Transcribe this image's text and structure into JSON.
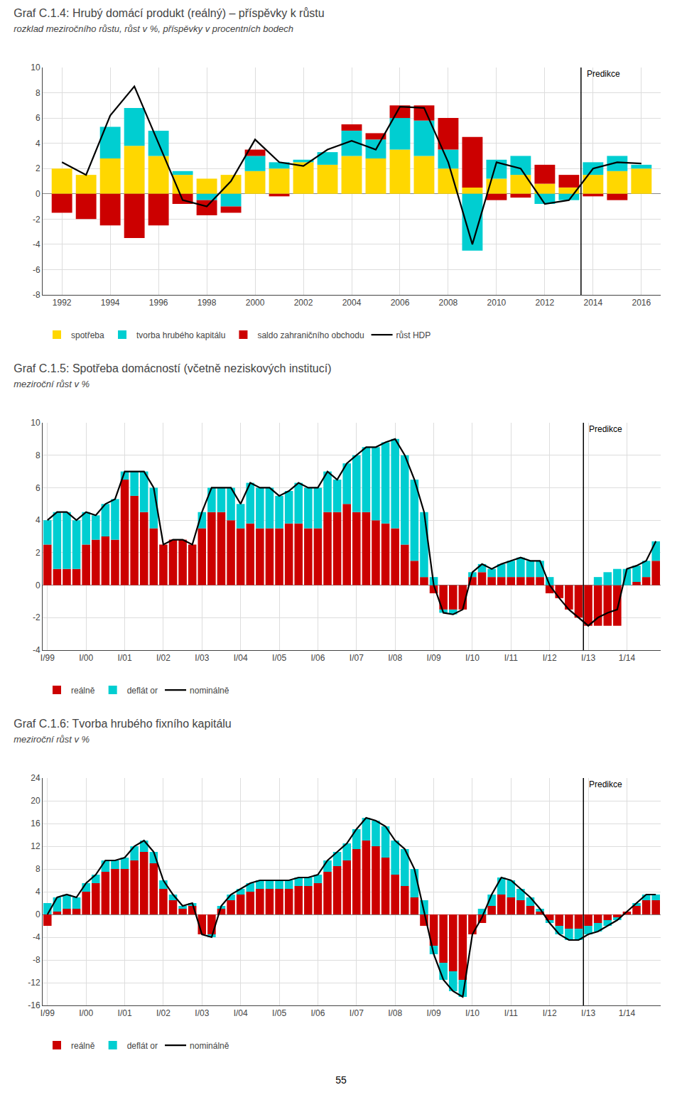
{
  "chart_data": [
    {
      "type": "bar",
      "title": "Graf C.1.4: Hrubý domácí produkt (reálný) – příspěvky k růstu",
      "subtitle": "rozklad meziročního růstu, růst v %, příspěvky v procentních bodech",
      "x": [
        1992,
        1993,
        1994,
        1995,
        1996,
        1997,
        1998,
        1999,
        2000,
        2001,
        2002,
        2003,
        2004,
        2005,
        2006,
        2007,
        2008,
        2009,
        2010,
        2011,
        2012,
        2013,
        2014,
        2015,
        2016
      ],
      "series": [
        {
          "name": "spotřeba",
          "type": "bar",
          "color": "#FFD700",
          "values": [
            2.0,
            1.5,
            2.8,
            3.8,
            3.0,
            1.5,
            1.2,
            1.5,
            1.8,
            2.0,
            2.5,
            2.3,
            3.0,
            2.8,
            3.5,
            3.0,
            2.0,
            0.5,
            1.2,
            1.5,
            0.8,
            0.5,
            1.5,
            1.8,
            2.0
          ]
        },
        {
          "name": "tvorba hrubého kapitálu",
          "type": "bar",
          "color": "#00CED1",
          "values": [
            0.0,
            0.0,
            2.5,
            3.0,
            2.0,
            0.3,
            -0.5,
            -1.0,
            1.2,
            0.5,
            0.2,
            1.0,
            2.0,
            1.5,
            2.5,
            2.8,
            1.5,
            -4.5,
            1.5,
            1.5,
            -0.8,
            -0.5,
            1.0,
            1.2,
            0.3
          ]
        },
        {
          "name": "saldo zahraničního obchodu",
          "type": "bar",
          "color": "#CC0000",
          "values": [
            -1.5,
            -2.0,
            -2.5,
            -3.5,
            -2.5,
            -0.8,
            -1.2,
            -0.5,
            0.5,
            -0.2,
            0.0,
            0.0,
            0.5,
            0.5,
            1.0,
            1.2,
            2.5,
            4.0,
            -0.5,
            -0.3,
            1.5,
            1.0,
            -0.2,
            -0.5,
            0.0
          ]
        },
        {
          "name": "růst HDP",
          "type": "line",
          "color": "#000000",
          "values": [
            2.5,
            1.5,
            6.2,
            8.5,
            4.0,
            -0.5,
            -1.0,
            1.0,
            4.3,
            2.5,
            2.2,
            3.5,
            4.2,
            3.5,
            6.9,
            6.8,
            2.5,
            -4.0,
            2.5,
            2.0,
            -0.8,
            -0.5,
            2.0,
            2.5,
            2.4
          ]
        }
      ],
      "annotations": [
        {
          "text": "Predikce",
          "x": 2013.5
        }
      ],
      "xlim": [
        1991.2,
        2016.8
      ],
      "xticks": [
        1992,
        1994,
        1996,
        1998,
        2000,
        2002,
        2004,
        2006,
        2008,
        2010,
        2012,
        2014,
        2016
      ],
      "ylim": [
        -8,
        10
      ],
      "yticks": [
        -8,
        -6,
        -4,
        -2,
        0,
        2,
        4,
        6,
        8,
        10
      ],
      "stacked": true,
      "grid": true,
      "legend": "bottom"
    },
    {
      "type": "bar",
      "title": "Graf C.1.5: Spotřeba domácností (včetně neziskových institucí)",
      "subtitle": "meziroční růst v %",
      "categories": [
        "I/99",
        null,
        null,
        null,
        "I/00",
        null,
        null,
        null,
        "I/01",
        null,
        null,
        null,
        "I/02",
        null,
        null,
        null,
        "I/03",
        null,
        null,
        null,
        "I/04",
        null,
        null,
        null,
        "I/05",
        null,
        null,
        null,
        "I/06",
        null,
        null,
        null,
        "I/07",
        null,
        null,
        null,
        "I/08",
        null,
        null,
        null,
        "I/09",
        null,
        null,
        null,
        "I/10",
        null,
        null,
        null,
        "I/11",
        null,
        null,
        null,
        "I/12",
        null,
        null,
        null,
        "I/13",
        null,
        null,
        null,
        "1/14",
        null,
        null,
        null
      ],
      "series": [
        {
          "name": "reálně",
          "type": "bar",
          "color": "#CC0000",
          "values": [
            2.5,
            1.0,
            1.0,
            1.0,
            2.5,
            2.8,
            3.0,
            2.8,
            6.5,
            5.5,
            4.5,
            3.5,
            2.5,
            2.8,
            2.8,
            2.5,
            3.5,
            4.5,
            4.5,
            4.0,
            3.5,
            3.8,
            3.5,
            3.5,
            3.5,
            3.8,
            3.8,
            3.5,
            3.5,
            4.5,
            4.5,
            5.0,
            4.5,
            4.5,
            4.0,
            3.8,
            3.5,
            2.5,
            1.5,
            0.5,
            -0.5,
            -1.5,
            -1.5,
            -1.5,
            0.5,
            0.8,
            0.5,
            0.5,
            0.5,
            0.5,
            0.5,
            0.5,
            -0.5,
            -0.8,
            -1.5,
            -2.0,
            -2.5,
            -2.5,
            -2.5,
            -2.5,
            0.0,
            0.2,
            0.5,
            1.5
          ]
        },
        {
          "name": "deflát or",
          "type": "bar",
          "color": "#00CED1",
          "values": [
            1.5,
            3.5,
            3.5,
            3.0,
            2.0,
            1.5,
            2.0,
            2.5,
            0.5,
            1.5,
            2.5,
            2.5,
            0.0,
            0.0,
            0.0,
            0.0,
            1.0,
            1.5,
            1.5,
            2.0,
            1.5,
            2.5,
            2.5,
            2.5,
            2.0,
            2.0,
            2.5,
            2.5,
            2.5,
            2.5,
            2.0,
            2.5,
            3.5,
            4.0,
            4.5,
            5.0,
            5.5,
            5.5,
            5.0,
            4.0,
            0.5,
            -0.2,
            -0.3,
            0.0,
            0.3,
            0.5,
            0.5,
            0.8,
            1.0,
            1.2,
            1.0,
            1.0,
            0.5,
            0.0,
            0.0,
            0.0,
            0.0,
            0.5,
            0.8,
            1.0,
            1.0,
            1.0,
            1.0,
            1.2
          ]
        },
        {
          "name": "nominálně",
          "type": "line",
          "color": "#000000",
          "values": [
            4.0,
            4.5,
            4.5,
            4.0,
            4.5,
            4.3,
            5.0,
            5.3,
            7.0,
            7.0,
            7.0,
            6.0,
            2.5,
            2.8,
            2.8,
            2.5,
            4.5,
            6.0,
            6.0,
            6.0,
            5.0,
            6.3,
            6.0,
            6.0,
            5.5,
            5.8,
            6.3,
            6.0,
            6.0,
            7.0,
            6.5,
            7.5,
            8.0,
            8.5,
            8.5,
            8.8,
            9.0,
            8.0,
            6.5,
            4.5,
            0.0,
            -1.7,
            -1.8,
            -1.5,
            0.8,
            1.3,
            1.0,
            1.3,
            1.5,
            1.7,
            1.5,
            1.5,
            0.0,
            -0.8,
            -1.5,
            -2.0,
            -2.5,
            -2.0,
            -1.7,
            -1.5,
            1.0,
            1.2,
            1.5,
            2.7
          ]
        }
      ],
      "annotations": [
        {
          "text": "Predikce",
          "x": 56
        }
      ],
      "ylim": [
        -4,
        10
      ],
      "yticks": [
        -4,
        -2,
        0,
        2,
        4,
        6,
        8,
        10
      ],
      "stacked": true,
      "grid": true,
      "legend": "bottom"
    },
    {
      "type": "bar",
      "title": "Graf C.1.6: Tvorba hrubého fixního kapitálu",
      "subtitle": "meziroční růst v %",
      "categories": [
        "I/99",
        null,
        null,
        null,
        "I/00",
        null,
        null,
        null,
        "I/01",
        null,
        null,
        null,
        "I/02",
        null,
        null,
        null,
        "I/03",
        null,
        null,
        null,
        "I/04",
        null,
        null,
        null,
        "I/05",
        null,
        null,
        null,
        "I/06",
        null,
        null,
        null,
        "I/07",
        null,
        null,
        null,
        "I/08",
        null,
        null,
        null,
        "I/09",
        null,
        null,
        null,
        "I/10",
        null,
        null,
        null,
        "I/11",
        null,
        null,
        null,
        "I/12",
        null,
        null,
        null,
        "I/13",
        null,
        null,
        null,
        "1/14",
        null,
        null,
        null
      ],
      "series": [
        {
          "name": "reálně",
          "type": "bar",
          "color": "#CC0000",
          "values": [
            -2.0,
            0.5,
            1.0,
            1.0,
            4.0,
            5.5,
            7.5,
            8.0,
            8.0,
            9.5,
            11.0,
            9.0,
            4.5,
            2.5,
            1.0,
            1.5,
            -3.5,
            -3.5,
            1.0,
            2.5,
            3.5,
            4.0,
            4.5,
            4.5,
            4.5,
            4.5,
            5.0,
            5.0,
            5.5,
            7.5,
            8.5,
            9.5,
            11.5,
            13.0,
            12.0,
            10.0,
            7.0,
            5.0,
            3.0,
            -2.0,
            -5.5,
            -8.5,
            -10.0,
            -11.5,
            -3.5,
            -1.5,
            1.5,
            3.5,
            3.0,
            2.5,
            1.5,
            0.5,
            -1.0,
            -2.0,
            -2.5,
            -2.5,
            -2.0,
            -1.5,
            -1.0,
            -0.5,
            0.5,
            1.5,
            2.5,
            2.5
          ]
        },
        {
          "name": "deflát or",
          "type": "bar",
          "color": "#00CED1",
          "values": [
            2.0,
            2.5,
            2.5,
            2.0,
            1.5,
            1.5,
            2.0,
            1.5,
            2.0,
            2.5,
            2.0,
            2.0,
            1.5,
            1.0,
            0.5,
            0.5,
            0.0,
            -0.5,
            0.5,
            1.0,
            1.0,
            1.5,
            1.5,
            1.5,
            1.5,
            1.5,
            1.5,
            1.5,
            1.5,
            2.0,
            2.5,
            3.0,
            3.5,
            4.0,
            4.5,
            5.5,
            6.0,
            6.5,
            5.0,
            2.5,
            -1.5,
            -3.0,
            -3.5,
            -3.0,
            0.0,
            1.0,
            2.0,
            3.0,
            3.0,
            2.0,
            1.5,
            0.5,
            -0.5,
            -1.5,
            -2.0,
            -2.0,
            -1.5,
            -1.5,
            -1.0,
            -0.5,
            0.0,
            0.5,
            1.0,
            1.0
          ]
        },
        {
          "name": "nominálně",
          "type": "line",
          "color": "#000000",
          "values": [
            0.0,
            3.0,
            3.5,
            3.0,
            5.5,
            7.0,
            9.5,
            9.5,
            10.0,
            12.0,
            13.0,
            11.0,
            6.0,
            3.5,
            1.5,
            2.0,
            -3.5,
            -4.0,
            1.5,
            3.5,
            4.5,
            5.5,
            6.0,
            6.0,
            6.0,
            6.0,
            6.5,
            6.5,
            7.0,
            9.5,
            11.0,
            12.5,
            15.0,
            17.0,
            16.5,
            15.5,
            13.0,
            11.5,
            8.0,
            0.5,
            -7.0,
            -11.5,
            -13.5,
            -14.5,
            -3.5,
            -0.5,
            3.5,
            6.5,
            6.0,
            4.5,
            3.0,
            1.0,
            -1.5,
            -3.5,
            -4.5,
            -4.5,
            -3.5,
            -3.0,
            -2.0,
            -1.0,
            0.5,
            2.0,
            3.5,
            3.5
          ]
        }
      ],
      "annotations": [
        {
          "text": "Predikce",
          "x": 56
        }
      ],
      "ylim": [
        -16,
        24
      ],
      "yticks": [
        -16,
        -12,
        -8,
        -4,
        0,
        4,
        8,
        12,
        16,
        20,
        24
      ],
      "stacked": true,
      "grid": true,
      "legend": "bottom"
    }
  ],
  "page_number": "55"
}
